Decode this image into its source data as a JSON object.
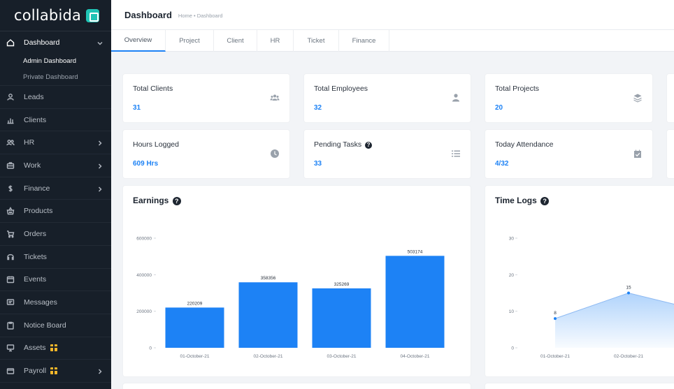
{
  "brand": {
    "name": "collabida"
  },
  "sidebar": {
    "dashboard": {
      "label": "Dashboard",
      "icon": "home-icon"
    },
    "sub_items": [
      {
        "label": "Admin Dashboard"
      },
      {
        "label": "Private Dashboard"
      }
    ],
    "items": [
      {
        "label": "Leads",
        "icon": "user-icon"
      },
      {
        "label": "Clients",
        "icon": "chart-icon"
      },
      {
        "label": "HR",
        "icon": "users-icon"
      },
      {
        "label": "Work",
        "icon": "briefcase-icon"
      },
      {
        "label": "Finance",
        "icon": "dollar-icon"
      },
      {
        "label": "Products",
        "icon": "basket-icon"
      },
      {
        "label": "Orders",
        "icon": "cart-icon"
      },
      {
        "label": "Tickets",
        "icon": "headset-icon"
      },
      {
        "label": "Events",
        "icon": "calendar-icon"
      },
      {
        "label": "Messages",
        "icon": "message-icon"
      },
      {
        "label": "Notice Board",
        "icon": "clipboard-icon"
      },
      {
        "label": "Assets",
        "icon": "monitor-icon"
      },
      {
        "label": "Payroll",
        "icon": "wallet-icon"
      }
    ]
  },
  "header": {
    "title": "Dashboard",
    "breadcrumb": "Home • Dashboard"
  },
  "tabs": [
    {
      "label": "Overview"
    },
    {
      "label": "Project"
    },
    {
      "label": "Client"
    },
    {
      "label": "HR"
    },
    {
      "label": "Ticket"
    },
    {
      "label": "Finance"
    }
  ],
  "stats": [
    {
      "title": "Total Clients",
      "value": "31",
      "icon": "users-icon"
    },
    {
      "title": "Total Employees",
      "value": "32",
      "icon": "user-icon"
    },
    {
      "title": "Total Projects",
      "value": "20",
      "icon": "layers-icon"
    },
    {
      "title": "Hours Logged",
      "value": "609 Hrs",
      "icon": "clock-icon"
    },
    {
      "title": "Pending Tasks",
      "value": "33",
      "icon": "tasks-icon"
    },
    {
      "title": "Today Attendance",
      "value": "4/32",
      "icon": "calendar-check-icon"
    }
  ],
  "panels": {
    "earnings_title": "Earnings",
    "timelogs_title": "Time Logs"
  },
  "colors": {
    "accent": "#1d82f5",
    "sidebar_bg": "#171f29",
    "page_bg": "#f2f4f7",
    "gift": "#f5b62a"
  },
  "chart_data": [
    {
      "type": "bar",
      "title": "Earnings",
      "categories": [
        "01-October-21",
        "02-October-21",
        "03-October-21",
        "04-October-21"
      ],
      "values": [
        220209,
        358356,
        325269,
        503174
      ],
      "value_labels": [
        "220209",
        "358356",
        "325269",
        "503174"
      ],
      "yticks": [
        "0",
        "200000",
        "400000",
        "600000"
      ],
      "ylim": [
        0,
        600000
      ],
      "color": "#1d82f5"
    },
    {
      "type": "area",
      "title": "Time Logs",
      "categories": [
        "01-October-21",
        "02-October-21"
      ],
      "values": [
        8,
        15
      ],
      "value_labels": [
        "8",
        "15"
      ],
      "yticks": [
        "0",
        "10",
        "20",
        "30"
      ],
      "ylim": [
        0,
        30
      ],
      "color": "#1d82f5"
    }
  ]
}
